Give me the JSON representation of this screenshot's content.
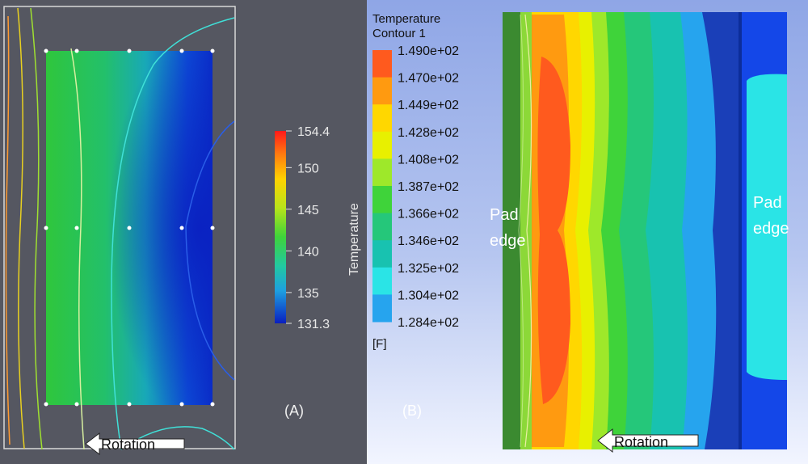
{
  "panel_a": {
    "label": "(A)",
    "arrow_label": "Rotation",
    "colorbar": {
      "title": "Temperature",
      "min_label": "131.3",
      "max_label": "154.4",
      "ticks": [
        "150",
        "145",
        "140",
        "135"
      ],
      "tick_values": [
        150,
        145,
        140,
        135
      ],
      "min": 131.3,
      "max": 154.4
    }
  },
  "panel_b": {
    "label": "(B)",
    "legend_title_1": "Temperature",
    "legend_title_2": "Contour 1",
    "legend_levels": [
      "1.490e+02",
      "1.470e+02",
      "1.449e+02",
      "1.428e+02",
      "1.408e+02",
      "1.387e+02",
      "1.366e+02",
      "1.346e+02",
      "1.325e+02",
      "1.304e+02",
      "1.284e+02"
    ],
    "legend_colors": [
      "#ff5a1e",
      "#ff9a10",
      "#ffd700",
      "#e8f000",
      "#9ee82a",
      "#3fd33a",
      "#25c77a",
      "#18c2b0",
      "#2ae4e6",
      "#26a4ee",
      "#1447e8"
    ],
    "unit": "[F]",
    "pad_edge_left": [
      "Pad",
      "edge"
    ],
    "pad_edge_right": [
      "Pad",
      "edge"
    ],
    "arrow_label": "Rotation"
  }
}
